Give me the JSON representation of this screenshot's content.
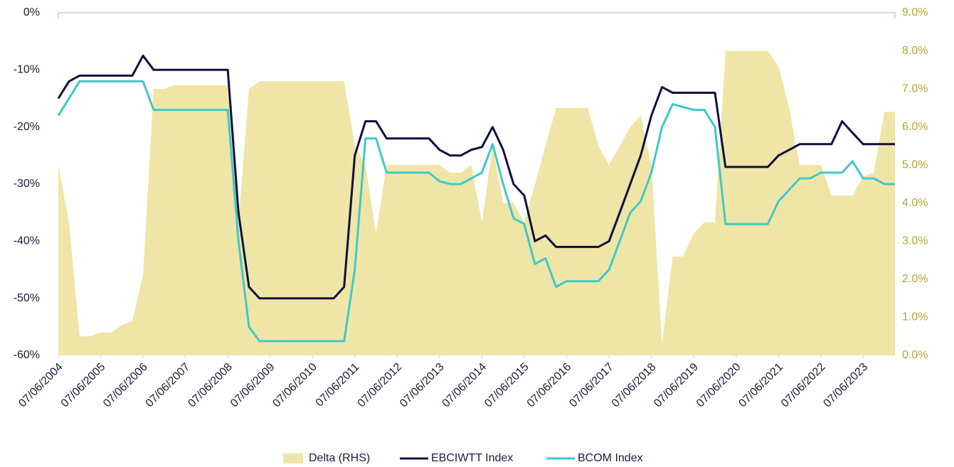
{
  "chart_data": {
    "type": "line",
    "x": [
      "07/06/2004",
      "07/09/2004",
      "07/12/2004",
      "07/03/2005",
      "07/06/2005",
      "07/09/2005",
      "07/12/2005",
      "07/03/2006",
      "07/06/2006",
      "07/09/2006",
      "07/12/2006",
      "07/03/2007",
      "07/06/2007",
      "07/09/2007",
      "07/12/2007",
      "07/03/2008",
      "07/06/2008",
      "07/09/2008",
      "07/12/2008",
      "07/03/2009",
      "07/06/2009",
      "07/09/2009",
      "07/12/2009",
      "07/03/2010",
      "07/06/2010",
      "07/09/2010",
      "07/12/2010",
      "07/03/2011",
      "07/06/2011",
      "07/09/2011",
      "07/12/2011",
      "07/03/2012",
      "07/06/2012",
      "07/09/2012",
      "07/12/2012",
      "07/03/2013",
      "07/06/2013",
      "07/09/2013",
      "07/12/2013",
      "07/03/2014",
      "07/06/2014",
      "07/09/2014",
      "07/12/2014",
      "07/03/2015",
      "07/06/2015",
      "07/09/2015",
      "07/12/2015",
      "07/03/2016",
      "07/06/2016",
      "07/09/2016",
      "07/12/2016",
      "07/03/2017",
      "07/06/2017",
      "07/09/2017",
      "07/12/2017",
      "07/03/2018",
      "07/06/2018",
      "07/09/2018",
      "07/12/2018",
      "07/03/2019",
      "07/06/2019",
      "07/09/2019",
      "07/12/2019",
      "07/03/2020",
      "07/06/2020",
      "07/09/2020",
      "07/12/2020",
      "07/03/2021",
      "07/06/2021",
      "07/09/2021",
      "07/12/2021",
      "07/03/2022",
      "07/06/2022",
      "07/09/2022",
      "07/12/2022",
      "07/03/2023",
      "07/06/2023",
      "07/09/2023",
      "07/12/2023",
      "07/03/2024"
    ],
    "series": [
      {
        "name": "Delta (RHS)",
        "color": "#efe5a6",
        "axis": "y2",
        "kind": "area",
        "values": [
          5.0,
          3.5,
          0.5,
          0.5,
          0.6,
          0.6,
          0.8,
          0.9,
          2.1,
          7.0,
          7.0,
          7.1,
          7.1,
          7.1,
          7.1,
          7.1,
          7.1,
          3.5,
          7.0,
          7.2,
          7.2,
          7.2,
          7.2,
          7.2,
          7.2,
          7.2,
          7.2,
          7.2,
          5.5,
          5.0,
          3.2,
          5.0,
          5.0,
          5.0,
          5.0,
          5.0,
          5.0,
          4.8,
          4.8,
          5.0,
          3.5,
          5.5,
          4.0,
          4.0,
          3.5,
          4.5,
          5.5,
          6.5,
          6.5,
          6.5,
          6.5,
          5.5,
          5.0,
          5.5,
          6.0,
          6.3,
          5.0,
          0.3,
          2.6,
          2.6,
          3.2,
          3.5,
          3.5,
          8.0,
          8.0,
          8.0,
          8.0,
          8.0,
          7.6,
          6.5,
          5.0,
          5.0,
          5.0,
          4.2,
          4.2,
          4.2,
          4.7,
          4.8,
          6.4,
          6.4
        ]
      },
      {
        "name": "EBCIWTT Index",
        "color": "#0d1040",
        "values": [
          -15,
          -12,
          -11,
          -11,
          -11,
          -11,
          -11,
          -11,
          -7.5,
          -10,
          -10,
          -10,
          -10,
          -10,
          -10,
          -10,
          -10,
          -35,
          -48,
          -50,
          -50,
          -50,
          -50,
          -50,
          -50,
          -50,
          -50,
          -48,
          -25,
          -19,
          -19,
          -22,
          -22,
          -22,
          -22,
          -22,
          -24,
          -25,
          -25,
          -24,
          -23.5,
          -20,
          -24,
          -30,
          -32,
          -40,
          -39,
          -41,
          -41,
          -41,
          -41,
          -41,
          -40,
          -35,
          -30,
          -25,
          -18,
          -13,
          -14,
          -14,
          -14,
          -14,
          -14,
          -27,
          -27,
          -27,
          -27,
          -27,
          -25,
          -24,
          -23,
          -23,
          -23,
          -23,
          -19,
          -21,
          -23,
          -23,
          -23,
          -23
        ]
      },
      {
        "name": "BCOM Index",
        "color": "#3ec9c9",
        "values": [
          -18,
          -15,
          -12,
          -12,
          -12,
          -12,
          -12,
          -12,
          -12,
          -17,
          -17,
          -17,
          -17,
          -17,
          -17,
          -17,
          -17,
          -40,
          -55,
          -57.5,
          -57.5,
          -57.5,
          -57.5,
          -57.5,
          -57.5,
          -57.5,
          -57.5,
          -57.5,
          -45,
          -22,
          -22,
          -28,
          -28,
          -28,
          -28,
          -28,
          -29.5,
          -30,
          -30,
          -29,
          -28,
          -23,
          -30,
          -36,
          -37,
          -44,
          -43,
          -48,
          -47,
          -47,
          -47,
          -47,
          -45,
          -40,
          -35,
          -33,
          -28,
          -20,
          -16,
          -16.5,
          -17,
          -17,
          -20,
          -37,
          -37,
          -37,
          -37,
          -37,
          -33,
          -31,
          -29,
          -29,
          -28,
          -28,
          -28,
          -26,
          -29,
          -29,
          -30,
          -30
        ]
      }
    ],
    "xlim": [
      "07/06/2004",
      "07/03/2024"
    ],
    "xticks": [
      "07/06/2004",
      "07/06/2005",
      "07/06/2006",
      "07/06/2007",
      "07/06/2008",
      "07/06/2009",
      "07/06/2010",
      "07/06/2011",
      "07/06/2012",
      "07/06/2013",
      "07/06/2014",
      "07/06/2015",
      "07/06/2016",
      "07/06/2017",
      "07/06/2018",
      "07/06/2019",
      "07/06/2020",
      "07/06/2021",
      "07/06/2022",
      "07/06/2023"
    ],
    "ylim": [
      -60,
      0
    ],
    "yticks": [
      {
        "value": 0,
        "label": "0%"
      },
      {
        "value": -10,
        "label": "-10%"
      },
      {
        "value": -20,
        "label": "-20%"
      },
      {
        "value": -30,
        "label": "-30%"
      },
      {
        "value": -40,
        "label": "-40%"
      },
      {
        "value": -50,
        "label": "-50%"
      },
      {
        "value": -60,
        "label": "-60%"
      }
    ],
    "y2lim": [
      0,
      9
    ],
    "y2ticks": [
      {
        "value": 9,
        "label": "9.0%"
      },
      {
        "value": 8,
        "label": "8.0%"
      },
      {
        "value": 7,
        "label": "7.0%"
      },
      {
        "value": 6,
        "label": "6.0%"
      },
      {
        "value": 5,
        "label": "5.0%"
      },
      {
        "value": 4,
        "label": "4.0%"
      },
      {
        "value": 3,
        "label": "3.0%"
      },
      {
        "value": 2,
        "label": "2.0%"
      },
      {
        "value": 1,
        "label": "1.0%"
      },
      {
        "value": 0,
        "label": "0.0%"
      }
    ],
    "legend": "bottom"
  }
}
